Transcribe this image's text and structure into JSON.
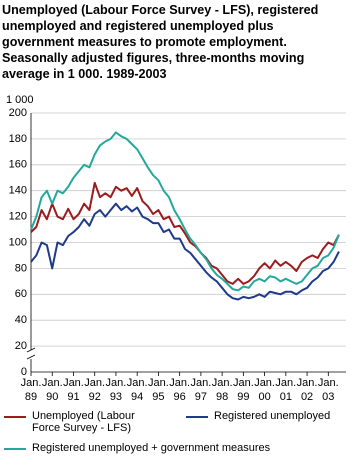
{
  "chart_data": {
    "type": "line",
    "title": [
      "Unemployed (Labour Force Survey - LFS), registered",
      "unemployed and  registered unemployed plus",
      "government measures to promote employment.",
      "Seasonally adjusted figures, three-months moving",
      "average in 1 000. 1989-2003"
    ],
    "y_label": "1 000",
    "x": [
      "1989-01",
      "1989-04",
      "1989-07",
      "1989-10",
      "1990-01",
      "1990-04",
      "1990-07",
      "1990-10",
      "1991-01",
      "1991-04",
      "1991-07",
      "1991-10",
      "1992-01",
      "1992-04",
      "1992-07",
      "1992-10",
      "1993-01",
      "1993-04",
      "1993-07",
      "1993-10",
      "1994-01",
      "1994-04",
      "1994-07",
      "1994-10",
      "1995-01",
      "1995-04",
      "1995-07",
      "1995-10",
      "1996-01",
      "1996-04",
      "1996-07",
      "1996-10",
      "1997-01",
      "1997-04",
      "1997-07",
      "1997-10",
      "1998-01",
      "1998-04",
      "1998-07",
      "1998-10",
      "1999-01",
      "1999-04",
      "1999-07",
      "1999-10",
      "2000-01",
      "2000-04",
      "2000-07",
      "2000-10",
      "2001-01",
      "2001-04",
      "2001-07",
      "2001-10",
      "2002-01",
      "2002-04",
      "2002-07",
      "2002-10",
      "2003-01",
      "2003-04",
      "2003-07"
    ],
    "series": [
      {
        "name": "Unemployed (Labour Force Survey - LFS)",
        "color": "#9b1b1e",
        "values": [
          108,
          112,
          125,
          118,
          130,
          120,
          118,
          126,
          118,
          122,
          130,
          125,
          146,
          135,
          138,
          135,
          143,
          140,
          142,
          136,
          142,
          132,
          128,
          122,
          125,
          118,
          120,
          112,
          113,
          107,
          100,
          97,
          92,
          88,
          82,
          80,
          75,
          70,
          68,
          72,
          68,
          70,
          74,
          80,
          84,
          80,
          86,
          82,
          85,
          82,
          78,
          85,
          88,
          90,
          88,
          95,
          100,
          98,
          106
        ]
      },
      {
        "name": "Registered unemployed",
        "color": "#1f3a8a",
        "values": [
          85,
          90,
          100,
          98,
          80,
          100,
          98,
          105,
          108,
          112,
          118,
          113,
          122,
          125,
          120,
          125,
          130,
          125,
          128,
          124,
          127,
          120,
          118,
          115,
          115,
          108,
          110,
          103,
          103,
          95,
          92,
          87,
          82,
          77,
          73,
          70,
          65,
          60,
          57,
          56,
          58,
          57,
          58,
          60,
          58,
          62,
          61,
          60,
          62,
          62,
          60,
          63,
          65,
          70,
          73,
          78,
          80,
          85,
          93
        ]
      },
      {
        "name": "Registered unemployed + government measures",
        "color": "#23a89c",
        "values": [
          110,
          120,
          135,
          140,
          130,
          140,
          138,
          143,
          150,
          155,
          160,
          158,
          168,
          175,
          178,
          180,
          185,
          182,
          180,
          176,
          172,
          165,
          158,
          152,
          148,
          140,
          135,
          125,
          118,
          110,
          103,
          98,
          92,
          87,
          80,
          75,
          72,
          68,
          64,
          63,
          66,
          65,
          70,
          72,
          70,
          74,
          73,
          70,
          72,
          70,
          68,
          70,
          75,
          80,
          82,
          88,
          90,
          96,
          106
        ]
      }
    ],
    "ylim": [
      0,
      200
    ],
    "yticks": [
      0,
      20,
      40,
      60,
      80,
      100,
      120,
      140,
      160,
      180,
      200
    ],
    "xlim": [
      "1989-01",
      "2003-11"
    ],
    "xticks": [
      {
        "value": "1989-01",
        "label": [
          "Jan.",
          "89"
        ]
      },
      {
        "value": "1990-01",
        "label": [
          "Jan.",
          "90"
        ]
      },
      {
        "value": "1991-01",
        "label": [
          "Jan.",
          "91"
        ]
      },
      {
        "value": "1992-01",
        "label": [
          "Jan.",
          "92"
        ]
      },
      {
        "value": "1993-01",
        "label": [
          "Jan.",
          "93"
        ]
      },
      {
        "value": "1994-01",
        "label": [
          "Jan.",
          "94"
        ]
      },
      {
        "value": "1995-01",
        "label": [
          "Jan.",
          "95"
        ]
      },
      {
        "value": "1996-01",
        "label": [
          "Jan.",
          "96"
        ]
      },
      {
        "value": "1997-01",
        "label": [
          "Jan.",
          "97"
        ]
      },
      {
        "value": "1998-01",
        "label": [
          "Jan.",
          "98"
        ]
      },
      {
        "value": "1999-01",
        "label": [
          "Jan.",
          "99"
        ]
      },
      {
        "value": "2000-01",
        "label": [
          "Jan.",
          "00"
        ]
      },
      {
        "value": "2001-01",
        "label": [
          "Jan.",
          "01"
        ]
      },
      {
        "value": "2002-01",
        "label": [
          "Jan.",
          "02"
        ]
      },
      {
        "value": "2003-01",
        "label": [
          "Jan.",
          "03"
        ]
      }
    ],
    "grid": true
  }
}
